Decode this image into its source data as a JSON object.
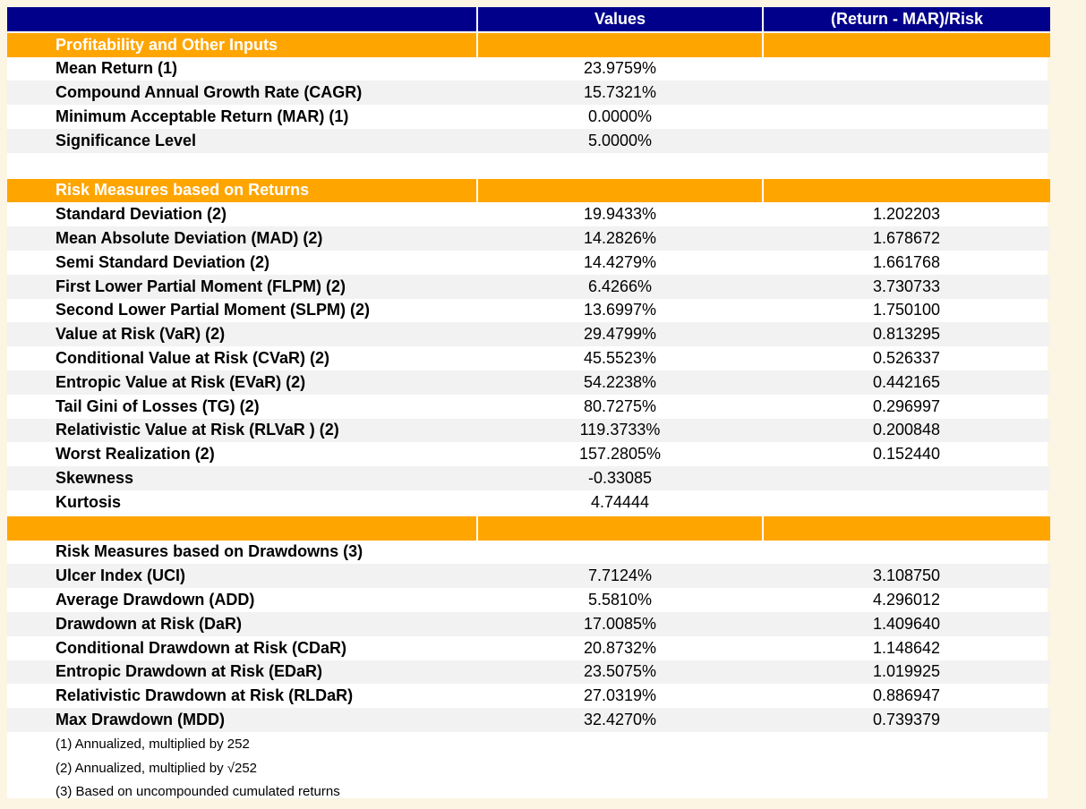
{
  "table": {
    "header": {
      "values": "Values",
      "ratio": "(Return - MAR)/Risk"
    },
    "sections": [
      {
        "title": "Profitability and Other Inputs",
        "rows": [
          [
            "Mean Return (1)",
            "23.9759%"
          ],
          [
            "Compound Annual Growth Rate (CAGR)",
            "15.7321%"
          ],
          [
            "Minimum Acceptable Return (MAR) (1)",
            "0.0000%"
          ],
          [
            "Significance Level",
            "5.0000%"
          ]
        ]
      },
      {
        "title": "Risk Measures based on Returns",
        "rows": [
          [
            "Standard Deviation (2)",
            "19.9433%",
            "1.202203"
          ],
          [
            "Mean Absolute Deviation (MAD) (2)",
            "14.2826%",
            "1.678672"
          ],
          [
            "Semi Standard Deviation (2)",
            "14.4279%",
            "1.661768"
          ],
          [
            "First Lower Partial Moment (FLPM) (2)",
            "6.4266%",
            "3.730733"
          ],
          [
            "Second Lower Partial Moment (SLPM) (2)",
            "13.6997%",
            "1.750100"
          ],
          [
            "Value at Risk (VaR) (2)",
            "29.4799%",
            "0.813295"
          ],
          [
            "Conditional Value at Risk (CVaR) (2)",
            "45.5523%",
            "0.526337"
          ],
          [
            "Entropic Value at Risk (EVaR) (2)",
            "54.2238%",
            "0.442165"
          ],
          [
            "Tail Gini of Losses (TG) (2)",
            "80.7275%",
            "0.296997"
          ],
          [
            "Relativistic Value at Risk (RLVaR ) (2)",
            "119.3733%",
            "0.200848"
          ],
          [
            "Worst Realization (2)",
            "157.2805%",
            "0.152440"
          ],
          [
            "Skewness",
            "-0.33085"
          ],
          [
            "Kurtosis",
            "4.74444"
          ]
        ]
      },
      {
        "title": "Risk Measures based on Drawdowns (3)",
        "rows": [
          [
            "Ulcer Index (UCI)",
            "7.7124%",
            "3.108750"
          ],
          [
            "Average Drawdown (ADD)",
            "5.5810%",
            "4.296012"
          ],
          [
            "Drawdown at Risk (DaR)",
            "17.0085%",
            "1.409640"
          ],
          [
            "Conditional Drawdown at Risk (CDaR)",
            "20.8732%",
            "1.148642"
          ],
          [
            "Entropic Drawdown at Risk (EDaR)",
            "23.5075%",
            "1.019925"
          ],
          [
            "Relativistic Drawdown at Risk (RLDaR)",
            "27.0319%",
            "0.886947"
          ],
          [
            "Max Drawdown (MDD)",
            "32.4270%",
            "0.739379"
          ]
        ]
      }
    ],
    "notes": [
      "(1) Annualized, multiplied by 252",
      "(2) Annualized, multiplied by √252",
      "(3) Based on uncompounded cumulated returns"
    ]
  }
}
